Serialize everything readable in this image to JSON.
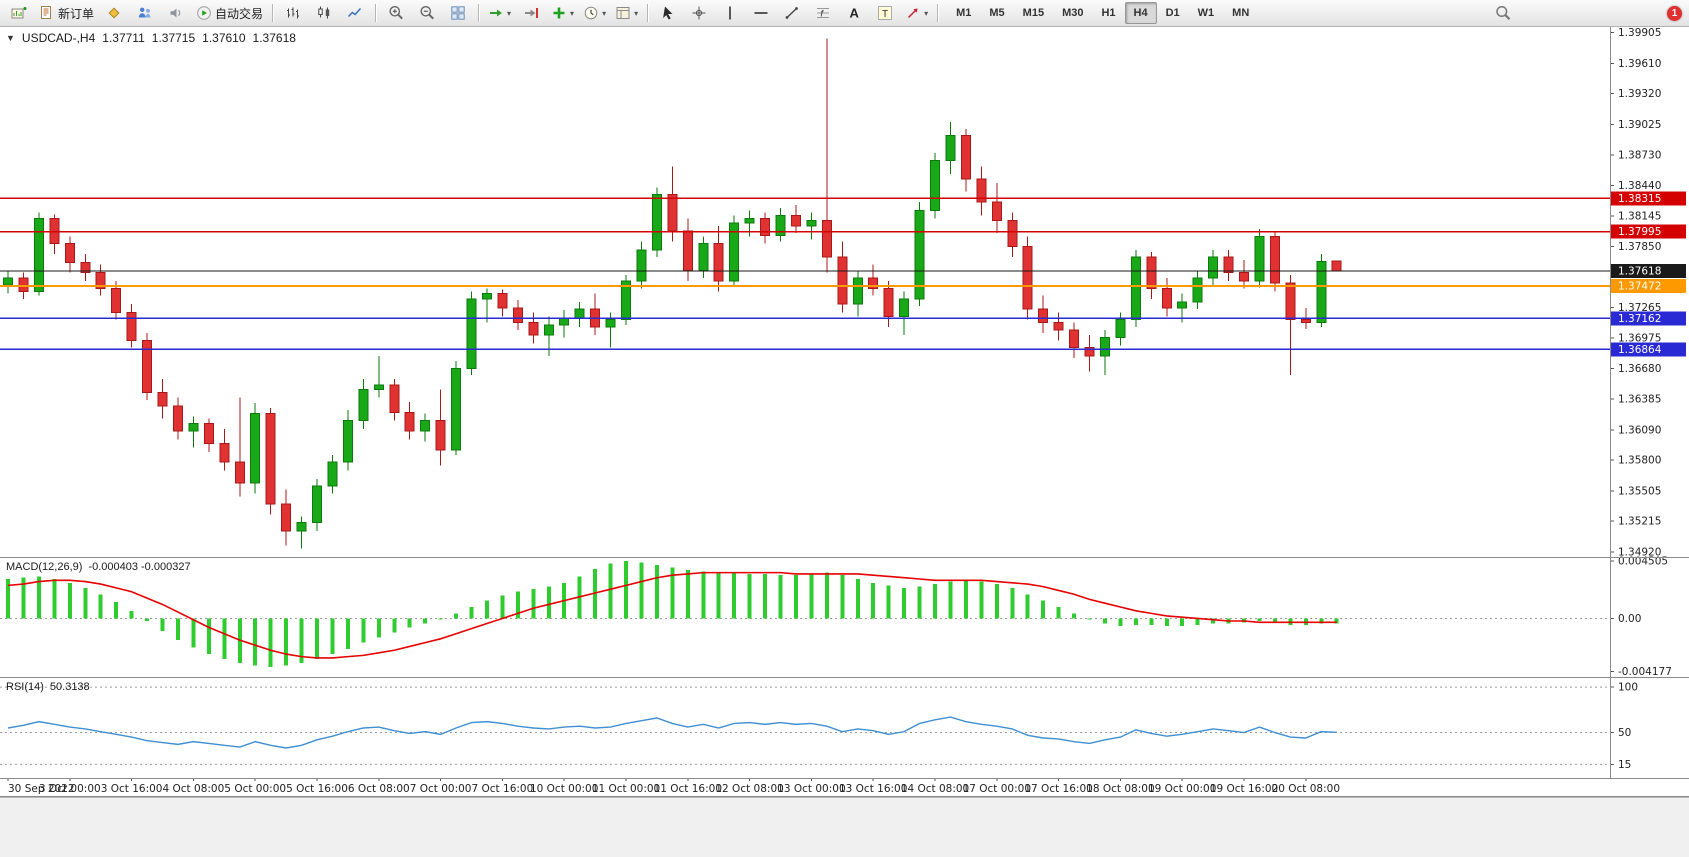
{
  "toolbar": {
    "groups": [
      {
        "items": [
          {
            "name": "new-chart-icon",
            "shape": "chartplus"
          },
          {
            "name": "new-order-button",
            "shape": "doc",
            "label": "新订单"
          },
          {
            "name": "metaeditor-icon",
            "shape": "diamond"
          },
          {
            "name": "community-icon",
            "shape": "people"
          },
          {
            "name": "sounds-icon",
            "shape": "sound"
          },
          {
            "name": "autotrading-button",
            "shape": "play",
            "label": "自动交易"
          }
        ]
      },
      {
        "items": [
          {
            "name": "chart-bars-icon",
            "shape": "bars"
          },
          {
            "name": "chart-candles-icon",
            "shape": "candles"
          },
          {
            "name": "chart-line-icon",
            "shape": "linechart"
          }
        ]
      },
      {
        "items": [
          {
            "name": "zoom-in-icon",
            "shape": "zoomin"
          },
          {
            "name": "zoom-out-icon",
            "shape": "zoomout"
          },
          {
            "name": "tile-windows-icon",
            "shape": "tiles"
          }
        ]
      },
      {
        "items": [
          {
            "name": "auto-scroll-icon",
            "shape": "autoscroll",
            "dropdown": true
          },
          {
            "name": "chart-shift-icon",
            "shape": "shift"
          },
          {
            "name": "indicators-icon",
            "shape": "plus",
            "dropdown": true
          },
          {
            "name": "periods-icon",
            "shape": "clock",
            "dropdown": true
          },
          {
            "name": "templates-icon",
            "shape": "template",
            "dropdown": true
          }
        ]
      },
      {
        "items": [
          {
            "name": "cursor-icon",
            "shape": "cursor"
          },
          {
            "name": "crosshair-icon",
            "shape": "crosshair"
          },
          {
            "name": "vline-icon",
            "shape": "vline"
          },
          {
            "name": "hline-icon",
            "shape": "hline"
          },
          {
            "name": "trendline-icon",
            "shape": "trendline"
          },
          {
            "name": "fibonacci-icon",
            "shape": "fibo"
          },
          {
            "name": "text-icon",
            "shape": "textA"
          },
          {
            "name": "label-icon",
            "shape": "textT"
          },
          {
            "name": "arrows-icon",
            "shape": "arrowtool",
            "dropdown": true
          }
        ]
      }
    ],
    "timeframes": [
      {
        "label": "M1"
      },
      {
        "label": "M5"
      },
      {
        "label": "M15"
      },
      {
        "label": "M30"
      },
      {
        "label": "H1"
      },
      {
        "label": "H4",
        "active": true
      },
      {
        "label": "D1"
      },
      {
        "label": "W1"
      },
      {
        "label": "MN"
      }
    ],
    "notification_count": "1"
  },
  "chart": {
    "symbol": "USDCAD-,H4",
    "ohlc_text": {
      "open": "1.37711",
      "high": "1.37715",
      "low": "1.37610",
      "close": "1.37618"
    },
    "price_axis_ticks": [
      "1.39905",
      "1.39610",
      "1.39320",
      "1.39025",
      "1.38730",
      "1.38440",
      "1.38145",
      "1.37850",
      "1.37265",
      "1.36975",
      "1.36680",
      "1.36385",
      "1.36090",
      "1.35800",
      "1.35505",
      "1.35215",
      "1.34920"
    ],
    "price_markers": [
      {
        "label": "1.38315",
        "price": 1.38315,
        "color": "#d40000",
        "type": "resistance-line"
      },
      {
        "label": "1.37995",
        "price": 1.37995,
        "color": "#d40000",
        "type": "resistance-line"
      },
      {
        "label": "1.37618",
        "price": 1.37618,
        "color": "#1a1a1a",
        "type": "current-price"
      },
      {
        "label": "1.37472",
        "price": 1.37472,
        "color": "#ff9900",
        "type": "pivot-line"
      },
      {
        "label": "1.37162",
        "price": 1.37162,
        "color": "#2a2ad4",
        "type": "support-line"
      },
      {
        "label": "1.36864",
        "price": 1.36864,
        "color": "#2a2ad4",
        "type": "support-line"
      }
    ],
    "time_axis": [
      "30 Sep 2022",
      "3 Oct 00:00",
      "3 Oct 16:00",
      "4 Oct 08:00",
      "5 Oct 00:00",
      "5 Oct 16:00",
      "6 Oct 08:00",
      "7 Oct 00:00",
      "7 Oct 16:00",
      "10 Oct 00:00",
      "11 Oct 00:00",
      "11 Oct 16:00",
      "12 Oct 08:00",
      "13 Oct 00:00",
      "13 Oct 16:00",
      "14 Oct 08:00",
      "17 Oct 00:00",
      "17 Oct 16:00",
      "18 Oct 08:00",
      "19 Oct 00:00",
      "19 Oct 16:00",
      "20 Oct 08:00"
    ]
  },
  "indicators": {
    "macd": {
      "label": "MACD(12,26,9)",
      "values": "-0.000403 -0.000327",
      "axis_labels": [
        "0.004505",
        "0.00",
        "-0.004177"
      ]
    },
    "rsi": {
      "label": "RSI(14)",
      "value": "50.3138",
      "axis_labels": [
        "100",
        "50",
        "15"
      ]
    }
  },
  "chart_data": [
    {
      "type": "candlestick",
      "title": "USDCAD H4",
      "ylim": [
        1.3487,
        1.3996
      ],
      "up_color": "#18a818",
      "down_color": "#e03232",
      "ohlc": [
        [
          1.3748,
          1.3762,
          1.374,
          1.3755
        ],
        [
          1.3755,
          1.376,
          1.3735,
          1.3742
        ],
        [
          1.3742,
          1.3818,
          1.3738,
          1.3812
        ],
        [
          1.3812,
          1.3816,
          1.3778,
          1.3788
        ],
        [
          1.3788,
          1.3795,
          1.376,
          1.377
        ],
        [
          1.377,
          1.3778,
          1.3752,
          1.376
        ],
        [
          1.376,
          1.3768,
          1.3738,
          1.3745
        ],
        [
          1.3745,
          1.3752,
          1.3715,
          1.3722
        ],
        [
          1.3722,
          1.373,
          1.3688,
          1.3695
        ],
        [
          1.3695,
          1.3702,
          1.3638,
          1.3645
        ],
        [
          1.3645,
          1.3658,
          1.362,
          1.3632
        ],
        [
          1.3632,
          1.364,
          1.36,
          1.3608
        ],
        [
          1.3608,
          1.3622,
          1.3592,
          1.3615
        ],
        [
          1.3615,
          1.362,
          1.3588,
          1.3596
        ],
        [
          1.3596,
          1.361,
          1.357,
          1.3578
        ],
        [
          1.3578,
          1.364,
          1.3545,
          1.3558
        ],
        [
          1.3558,
          1.3635,
          1.3548,
          1.3625
        ],
        [
          1.3625,
          1.363,
          1.3528,
          1.3538
        ],
        [
          1.3538,
          1.3552,
          1.3498,
          1.3512
        ],
        [
          1.3512,
          1.3526,
          1.3495,
          1.352
        ],
        [
          1.352,
          1.3562,
          1.3512,
          1.3555
        ],
        [
          1.3555,
          1.3585,
          1.3548,
          1.3578
        ],
        [
          1.3578,
          1.3628,
          1.357,
          1.3618
        ],
        [
          1.3618,
          1.3658,
          1.361,
          1.3648
        ],
        [
          1.3648,
          1.368,
          1.364,
          1.3652
        ],
        [
          1.3652,
          1.3658,
          1.3618,
          1.3626
        ],
        [
          1.3626,
          1.3636,
          1.36,
          1.3608
        ],
        [
          1.3608,
          1.3625,
          1.3598,
          1.3618
        ],
        [
          1.3618,
          1.3648,
          1.3575,
          1.359
        ],
        [
          1.359,
          1.3675,
          1.3585,
          1.3668
        ],
        [
          1.3668,
          1.3742,
          1.3662,
          1.3735
        ],
        [
          1.3735,
          1.3745,
          1.3712,
          1.374
        ],
        [
          1.374,
          1.3744,
          1.3718,
          1.3726
        ],
        [
          1.3726,
          1.3734,
          1.3705,
          1.3712
        ],
        [
          1.3712,
          1.3722,
          1.3692,
          1.37
        ],
        [
          1.37,
          1.3718,
          1.368,
          1.371
        ],
        [
          1.371,
          1.3724,
          1.3698,
          1.3716
        ],
        [
          1.3716,
          1.3732,
          1.3708,
          1.3725
        ],
        [
          1.3725,
          1.374,
          1.37,
          1.3708
        ],
        [
          1.3708,
          1.3722,
          1.3688,
          1.3715
        ],
        [
          1.3715,
          1.3758,
          1.371,
          1.3752
        ],
        [
          1.3752,
          1.379,
          1.3745,
          1.3782
        ],
        [
          1.3782,
          1.3842,
          1.3775,
          1.3835
        ],
        [
          1.3835,
          1.3862,
          1.379,
          1.38
        ],
        [
          1.38,
          1.3812,
          1.3752,
          1.3762
        ],
        [
          1.3762,
          1.3795,
          1.3755,
          1.3788
        ],
        [
          1.3788,
          1.3805,
          1.3742,
          1.3752
        ],
        [
          1.3752,
          1.3815,
          1.3748,
          1.3808
        ],
        [
          1.3808,
          1.382,
          1.3795,
          1.3812
        ],
        [
          1.3812,
          1.3818,
          1.3788,
          1.3796
        ],
        [
          1.3796,
          1.3822,
          1.379,
          1.3815
        ],
        [
          1.3815,
          1.3825,
          1.3798,
          1.3805
        ],
        [
          1.3805,
          1.3818,
          1.3792,
          1.381
        ],
        [
          1.381,
          1.3985,
          1.376,
          1.3775
        ],
        [
          1.3775,
          1.379,
          1.3722,
          1.373
        ],
        [
          1.373,
          1.3762,
          1.3718,
          1.3755
        ],
        [
          1.3755,
          1.3768,
          1.3738,
          1.3745
        ],
        [
          1.3745,
          1.3752,
          1.3708,
          1.3718
        ],
        [
          1.3718,
          1.3742,
          1.37,
          1.3735
        ],
        [
          1.3735,
          1.3828,
          1.3728,
          1.382
        ],
        [
          1.382,
          1.3875,
          1.3812,
          1.3868
        ],
        [
          1.3868,
          1.3905,
          1.3855,
          1.3892
        ],
        [
          1.3892,
          1.3898,
          1.3838,
          1.385
        ],
        [
          1.385,
          1.3862,
          1.3815,
          1.3828
        ],
        [
          1.3828,
          1.3846,
          1.3798,
          1.381
        ],
        [
          1.381,
          1.3818,
          1.3775,
          1.3785
        ],
        [
          1.3785,
          1.3795,
          1.3715,
          1.3725
        ],
        [
          1.3725,
          1.3738,
          1.3702,
          1.3712
        ],
        [
          1.3712,
          1.3722,
          1.3695,
          1.3705
        ],
        [
          1.3705,
          1.3712,
          1.3678,
          1.3688
        ],
        [
          1.3688,
          1.37,
          1.3665,
          1.368
        ],
        [
          1.368,
          1.3705,
          1.3662,
          1.3698
        ],
        [
          1.3698,
          1.3722,
          1.369,
          1.3715
        ],
        [
          1.3715,
          1.3782,
          1.3708,
          1.3775
        ],
        [
          1.3775,
          1.378,
          1.3735,
          1.3745
        ],
        [
          1.3745,
          1.3755,
          1.3718,
          1.3726
        ],
        [
          1.3726,
          1.374,
          1.3712,
          1.3732
        ],
        [
          1.3732,
          1.3762,
          1.3725,
          1.3755
        ],
        [
          1.3755,
          1.3782,
          1.3748,
          1.3775
        ],
        [
          1.3775,
          1.3782,
          1.3752,
          1.376
        ],
        [
          1.376,
          1.3772,
          1.3745,
          1.3752
        ],
        [
          1.3752,
          1.3802,
          1.3746,
          1.3795
        ],
        [
          1.3795,
          1.38,
          1.3742,
          1.375
        ],
        [
          1.375,
          1.3758,
          1.3662,
          1.3715
        ],
        [
          1.3715,
          1.3726,
          1.3706,
          1.3712
        ],
        [
          1.3712,
          1.3778,
          1.3708,
          1.3771
        ],
        [
          1.37711,
          1.37715,
          1.3761,
          1.37618
        ]
      ]
    },
    {
      "type": "bar",
      "title": "MACD(12,26,9) histogram",
      "ylim": [
        -0.0046,
        0.00475
      ],
      "color": "#2ecc2e",
      "values": [
        0.0031,
        0.0032,
        0.0033,
        0.0031,
        0.0028,
        0.0024,
        0.0019,
        0.0013,
        0.0006,
        -0.0002,
        -0.001,
        -0.0017,
        -0.0023,
        -0.0028,
        -0.0032,
        -0.0035,
        -0.0037,
        -0.0038,
        -0.0037,
        -0.0035,
        -0.0032,
        -0.0028,
        -0.0024,
        -0.0019,
        -0.0015,
        -0.0011,
        -0.0007,
        -0.0004,
        -0.0001,
        0.0004,
        0.0009,
        0.0014,
        0.0018,
        0.0021,
        0.0023,
        0.0025,
        0.0028,
        0.0033,
        0.0039,
        0.0043,
        0.0045,
        0.0044,
        0.0042,
        0.004,
        0.0038,
        0.0037,
        0.0036,
        0.0036,
        0.0035,
        0.0035,
        0.0034,
        0.0034,
        0.0035,
        0.0036,
        0.0034,
        0.0031,
        0.0028,
        0.0026,
        0.0024,
        0.0025,
        0.0027,
        0.0029,
        0.003,
        0.0029,
        0.0027,
        0.0024,
        0.0019,
        0.0014,
        0.0009,
        0.0004,
        -0.0001,
        -0.0004,
        -0.0006,
        -0.0005,
        -0.0005,
        -0.0006,
        -0.0006,
        -0.0005,
        -0.0004,
        -0.0004,
        -0.0003,
        -0.0002,
        -0.0003,
        -0.0005,
        -0.0005,
        -0.0004,
        -0.0004
      ],
      "series": [
        {
          "name": "signal",
          "color": "#e60000",
          "values": [
            0.0026,
            0.0027,
            0.0029,
            0.003,
            0.003,
            0.0029,
            0.0027,
            0.0024,
            0.0021,
            0.0016,
            0.0011,
            0.0005,
            -0.0001,
            -0.0007,
            -0.0012,
            -0.0017,
            -0.0021,
            -0.0025,
            -0.0028,
            -0.003,
            -0.0031,
            -0.0031,
            -0.003,
            -0.0029,
            -0.0027,
            -0.0025,
            -0.0022,
            -0.0019,
            -0.0016,
            -0.0012,
            -0.0008,
            -0.0004,
            0.0,
            0.0004,
            0.0008,
            0.0011,
            0.0014,
            0.0017,
            0.002,
            0.0023,
            0.0026,
            0.0029,
            0.0032,
            0.0034,
            0.0035,
            0.0036,
            0.0036,
            0.0036,
            0.0036,
            0.0036,
            0.0036,
            0.0035,
            0.0035,
            0.0035,
            0.0035,
            0.0035,
            0.0034,
            0.0033,
            0.0032,
            0.0031,
            0.003,
            0.003,
            0.003,
            0.003,
            0.0029,
            0.0028,
            0.0027,
            0.0025,
            0.0022,
            0.0019,
            0.0015,
            0.0012,
            0.0009,
            0.0006,
            0.0004,
            0.0002,
            0.0001,
            0.0,
            -0.0001,
            -0.0002,
            -0.0002,
            -0.0003,
            -0.0003,
            -0.0003,
            -0.0003,
            -0.0003,
            -0.0003
          ]
        }
      ]
    },
    {
      "type": "line",
      "title": "RSI(14)",
      "ylim": [
        0,
        110
      ],
      "color": "#3f8fd2",
      "levels": [
        100,
        50,
        15
      ],
      "values": [
        55,
        58,
        62,
        59,
        56,
        54,
        51,
        48,
        45,
        41,
        39,
        37,
        40,
        38,
        36,
        34,
        40,
        36,
        33,
        36,
        42,
        46,
        51,
        55,
        56,
        52,
        49,
        51,
        48,
        55,
        61,
        62,
        60,
        57,
        55,
        54,
        56,
        57,
        55,
        56,
        60,
        63,
        66,
        60,
        56,
        59,
        55,
        60,
        61,
        59,
        61,
        59,
        60,
        57,
        51,
        54,
        52,
        48,
        51,
        60,
        64,
        67,
        62,
        59,
        57,
        54,
        47,
        44,
        43,
        40,
        38,
        42,
        45,
        53,
        49,
        46,
        48,
        51,
        54,
        52,
        50,
        56,
        50,
        45,
        44,
        51,
        50.3
      ]
    }
  ]
}
